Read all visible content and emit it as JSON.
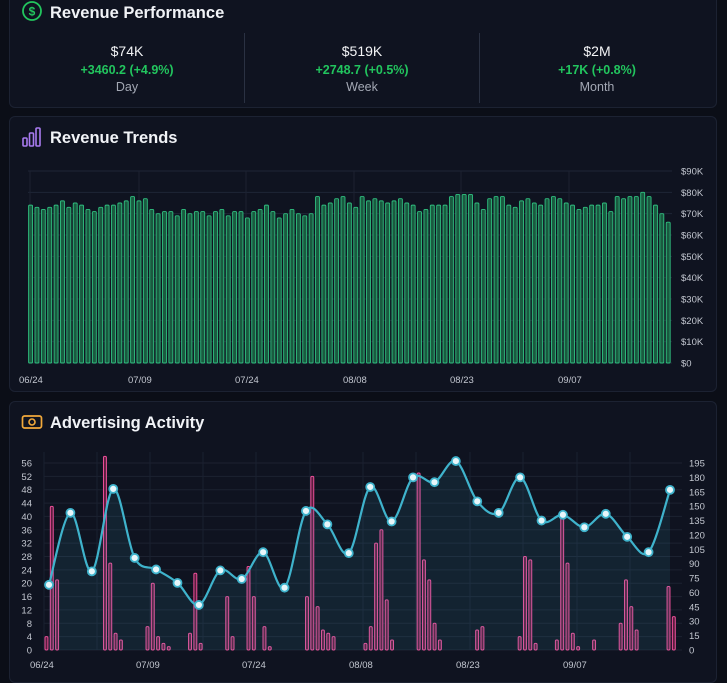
{
  "revenue_performance": {
    "title": "Revenue Performance",
    "icon": "dollar-circle-icon",
    "stats": [
      {
        "value": "$74K",
        "change": "+3460.2 (+4.9%)",
        "period": "Day"
      },
      {
        "value": "$519K",
        "change": "+2748.7 (+0.5%)",
        "period": "Week"
      },
      {
        "value": "$2M",
        "change": "+17K (+0.8%)",
        "period": "Month"
      }
    ],
    "colors": {
      "positive": "#22c55e",
      "icon": "#22c55e"
    }
  },
  "revenue_trends": {
    "title": "Revenue Trends",
    "icon": "bar-chart-icon",
    "chart_data": {
      "type": "bar",
      "x_ticks": [
        "06/24",
        "07/09",
        "07/24",
        "08/08",
        "08/23",
        "09/07"
      ],
      "y_ticks": [
        "$0",
        "$10K",
        "$20K",
        "$30K",
        "$40K",
        "$50K",
        "$60K",
        "$70K",
        "$80K",
        "$90K"
      ],
      "ylim": [
        0,
        90000
      ],
      "values": [
        74,
        73,
        72,
        73,
        74,
        76,
        73,
        75,
        74,
        72,
        71,
        73,
        74,
        74,
        75,
        76,
        78,
        76,
        77,
        72,
        70,
        71,
        71,
        69,
        72,
        70,
        71,
        71,
        69,
        71,
        72,
        69,
        71,
        71,
        68,
        71,
        72,
        74,
        71,
        68,
        70,
        72,
        70,
        69,
        70,
        78,
        74,
        75,
        77,
        78,
        75,
        73,
        78,
        76,
        77,
        76,
        75,
        76,
        77,
        75,
        74,
        71,
        72,
        74,
        74,
        74,
        78,
        79,
        79,
        79,
        75,
        72,
        77,
        78,
        78,
        74,
        73,
        76,
        77,
        75,
        74,
        77,
        78,
        77,
        75,
        74,
        72,
        73,
        74,
        74,
        75,
        71,
        78,
        77,
        78,
        78,
        80,
        78,
        74,
        70,
        66
      ],
      "bar_color": "#2fbf7f"
    }
  },
  "advertising_activity": {
    "title": "Advertising Activity",
    "icon": "money-bill-icon",
    "chart_data": {
      "type": "bar",
      "x_ticks": [
        "06/24",
        "07/09",
        "07/24",
        "08/08",
        "08/23",
        "09/07"
      ],
      "y_left_ticks": [
        "0",
        "4",
        "8",
        "12",
        "16",
        "20",
        "24",
        "28",
        "32",
        "36",
        "40",
        "44",
        "48",
        "52",
        "56"
      ],
      "y_right_ticks": [
        "0",
        "15",
        "30",
        "45",
        "60",
        "75",
        "90",
        "105",
        "120",
        "135",
        "150",
        "165",
        "180",
        "195"
      ],
      "ylim_left": [
        0,
        58
      ],
      "ylim_right": [
        0,
        200
      ],
      "series": [
        {
          "type": "bar",
          "axis": "left",
          "color": "#ec4f99",
          "values": [
            4,
            43,
            21,
            0,
            0,
            0,
            0,
            0,
            0,
            0,
            0,
            58,
            26,
            5,
            3,
            0,
            0,
            0,
            0,
            7,
            20,
            4,
            2,
            1,
            0,
            0,
            0,
            5,
            23,
            2,
            0,
            0,
            0,
            0,
            16,
            4,
            0,
            0,
            25,
            16,
            0,
            7,
            1,
            0,
            0,
            0,
            0,
            0,
            0,
            16,
            52,
            13,
            6,
            5,
            4,
            0,
            0,
            0,
            0,
            0,
            2,
            7,
            32,
            36,
            15,
            3,
            0,
            0,
            0,
            0,
            53,
            27,
            21,
            8,
            3,
            0,
            0,
            0,
            0,
            0,
            0,
            6,
            7,
            0,
            0,
            0,
            0,
            0,
            0,
            4,
            28,
            27,
            2,
            0,
            0,
            0,
            3,
            40,
            26,
            5,
            1,
            0,
            0,
            3,
            0,
            0,
            0,
            0,
            8,
            21,
            13,
            6,
            0,
            0,
            0,
            0,
            0,
            19,
            10,
            0
          ]
        },
        {
          "type": "line",
          "axis": "right",
          "color": "#3fb3cc",
          "points": [
            [
              0,
              68
            ],
            [
              1,
              143
            ],
            [
              2,
              82
            ],
            [
              3,
              168
            ],
            [
              4,
              96
            ],
            [
              5,
              84
            ],
            [
              6,
              70
            ],
            [
              7,
              47
            ],
            [
              8,
              83
            ],
            [
              9,
              74
            ],
            [
              10,
              102
            ],
            [
              11,
              65
            ],
            [
              12,
              145
            ],
            [
              13,
              131
            ],
            [
              14,
              101
            ],
            [
              15,
              170
            ],
            [
              16,
              134
            ],
            [
              17,
              180
            ],
            [
              18,
              175
            ],
            [
              19,
              197
            ],
            [
              20,
              155
            ],
            [
              21,
              143
            ],
            [
              22,
              180
            ],
            [
              23,
              135
            ],
            [
              24,
              141
            ],
            [
              25,
              128
            ],
            [
              26,
              142
            ],
            [
              27,
              118
            ],
            [
              28,
              102
            ],
            [
              29,
              167
            ]
          ],
          "x_range": [
            0,
            29
          ]
        }
      ]
    }
  }
}
